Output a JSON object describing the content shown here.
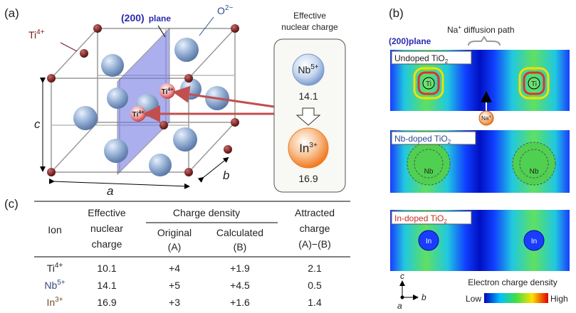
{
  "panel_a": {
    "label": "(a)",
    "plane": {
      "index": "(200)",
      "word": "plane"
    },
    "oxygen": {
      "symbol": "O",
      "charge": "2−"
    },
    "ti_label": {
      "symbol": "Ti",
      "charge": "4+"
    },
    "axis_a": "a",
    "axis_b": "b",
    "axis_c": "c",
    "atom_labels": [
      {
        "symbol": "Ti",
        "charge": "4+"
      },
      {
        "symbol": "Ti",
        "charge": "4+"
      }
    ],
    "inset": {
      "title_lines": [
        "Effective",
        "nuclear charge"
      ],
      "ions": [
        {
          "symbol": "Nb",
          "charge": "5+",
          "value": "14.1"
        },
        {
          "symbol": "In",
          "charge": "3+",
          "value": "16.9"
        }
      ]
    }
  },
  "panel_b": {
    "label": "(b)",
    "plane": {
      "index": "(200)",
      "word": "plane"
    },
    "path_label": {
      "symbol": "Na",
      "charge": "+",
      "rest": " diffusion path"
    },
    "maps": [
      {
        "title": {
          "text": "Undoped TiO",
          "sub": "2"
        },
        "atoms": [
          "Ti",
          "Ti"
        ]
      },
      {
        "title": {
          "text": "Nb-doped TiO",
          "sub": "2"
        },
        "atoms": [
          "Nb",
          "Nb"
        ]
      },
      {
        "title": {
          "text": "In-doped TiO",
          "sub": "2"
        },
        "atoms": [
          "In",
          "In"
        ]
      }
    ],
    "na_ion": {
      "symbol": "Na",
      "charge": "+"
    },
    "axes": {
      "c": "c",
      "a": "a",
      "b": "b"
    },
    "colorbar": {
      "title": "Electron charge density",
      "low": "Low",
      "high": "High"
    }
  },
  "panel_c": {
    "label": "(c)",
    "headers": {
      "ion": "Ion",
      "nuclear": [
        "Effective",
        "nuclear",
        "charge"
      ],
      "density": "Charge density",
      "original": [
        "Original",
        "(A)"
      ],
      "calculated": [
        "Calculated",
        "(B)"
      ],
      "attracted": [
        "Attracted",
        "charge",
        "(A)−(B)"
      ]
    },
    "rows": [
      {
        "symbol": "Ti",
        "charge": "4+",
        "nuclear": "10.1",
        "original": "+4",
        "calculated": "+1.9",
        "attracted": "2.1"
      },
      {
        "symbol": "Nb",
        "charge": "5+",
        "nuclear": "14.1",
        "original": "+5",
        "calculated": "+4.5",
        "attracted": "0.5"
      },
      {
        "symbol": "In",
        "charge": "3+",
        "nuclear": "16.9",
        "original": "+3",
        "calculated": "+1.6",
        "attracted": "1.4"
      }
    ]
  }
}
